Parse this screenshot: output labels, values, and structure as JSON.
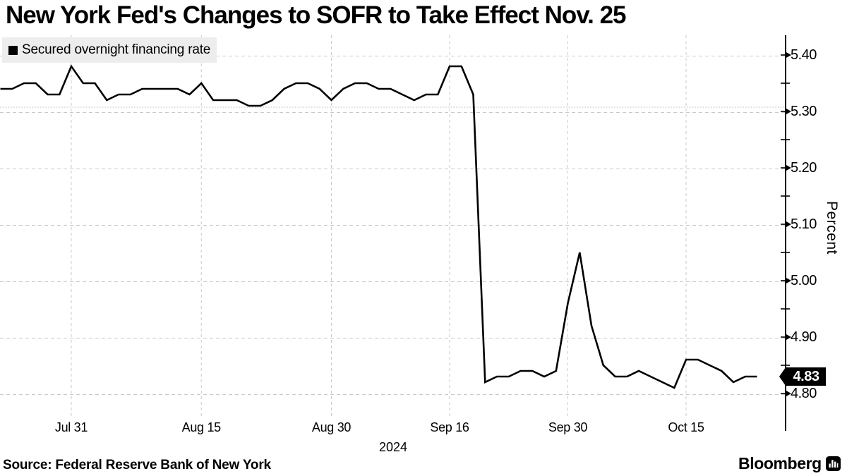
{
  "title": "New York Fed's Changes to SOFR to Take Effect Nov. 25",
  "legend": {
    "label": "Secured overnight financing rate",
    "swatch_color": "#000000"
  },
  "yaxis": {
    "title": "Percent"
  },
  "xaxis": {
    "year": "2024"
  },
  "footer": {
    "source": "Source: Federal Reserve Bank of New York",
    "brand": "Bloomberg"
  },
  "colors": {
    "line": "#000000",
    "grid": "#c9c9c9",
    "axis": "#000000",
    "legend_bg": "#ededed",
    "badge_bg": "#000000",
    "badge_text": "#ffffff"
  },
  "chart_data": {
    "type": "line",
    "title": "New York Fed's Changes to SOFR to Take Effect Nov. 25",
    "xlabel": "2024",
    "ylabel": "Percent",
    "ylim": [
      4.76,
      5.43
    ],
    "grid": true,
    "legend_position": "top-left",
    "legend": [
      "Secured overnight financing rate"
    ],
    "last_value_label": "4.83",
    "last_value": 4.83,
    "y_ticks": [
      {
        "v": 5.4,
        "label": "5.40"
      },
      {
        "v": 5.3,
        "label": "5.30"
      },
      {
        "v": 5.2,
        "label": "5.20"
      },
      {
        "v": 5.1,
        "label": "5.10"
      },
      {
        "v": 5.0,
        "label": "5.00"
      },
      {
        "v": 4.9,
        "label": "4.90"
      },
      {
        "v": 4.8,
        "label": "4.80"
      }
    ],
    "y_minor_ticks": [
      5.35,
      5.25,
      5.15,
      5.05,
      4.95,
      4.85
    ],
    "extra_dotted_gridline_value": 5.31,
    "x_ticks": [
      {
        "index": 6,
        "label": "Jul 31"
      },
      {
        "index": 17,
        "label": "Aug 15"
      },
      {
        "index": 28,
        "label": "Aug 30"
      },
      {
        "index": 38,
        "label": "Sep 16"
      },
      {
        "index": 48,
        "label": "Sep 30"
      },
      {
        "index": 58,
        "label": "Oct 15"
      }
    ],
    "series": [
      {
        "name": "Secured overnight financing rate",
        "dates": [
          "Jul 23",
          "Jul 24",
          "Jul 25",
          "Jul 26",
          "Jul 29",
          "Jul 30",
          "Jul 31",
          "Aug 1",
          "Aug 2",
          "Aug 5",
          "Aug 6",
          "Aug 7",
          "Aug 8",
          "Aug 9",
          "Aug 12",
          "Aug 13",
          "Aug 14",
          "Aug 15",
          "Aug 16",
          "Aug 19",
          "Aug 20",
          "Aug 21",
          "Aug 22",
          "Aug 23",
          "Aug 26",
          "Aug 27",
          "Aug 28",
          "Aug 29",
          "Aug 30",
          "Sep 3",
          "Sep 4",
          "Sep 5",
          "Sep 6",
          "Sep 9",
          "Sep 10",
          "Sep 11",
          "Sep 12",
          "Sep 13",
          "Sep 16",
          "Sep 17",
          "Sep 18",
          "Sep 19",
          "Sep 20",
          "Sep 23",
          "Sep 24",
          "Sep 25",
          "Sep 26",
          "Sep 27",
          "Sep 30",
          "Oct 1",
          "Oct 2",
          "Oct 3",
          "Oct 4",
          "Oct 7",
          "Oct 8",
          "Oct 9",
          "Oct 10",
          "Oct 11",
          "Oct 15",
          "Oct 16",
          "Oct 17",
          "Oct 18",
          "Oct 21",
          "Oct 22",
          "Oct 23"
        ],
        "values": [
          5.34,
          5.34,
          5.35,
          5.35,
          5.33,
          5.33,
          5.38,
          5.35,
          5.35,
          5.32,
          5.33,
          5.33,
          5.34,
          5.34,
          5.34,
          5.34,
          5.33,
          5.35,
          5.32,
          5.32,
          5.32,
          5.31,
          5.31,
          5.32,
          5.34,
          5.35,
          5.35,
          5.34,
          5.32,
          5.34,
          5.35,
          5.35,
          5.34,
          5.34,
          5.33,
          5.32,
          5.33,
          5.33,
          5.38,
          5.38,
          5.33,
          4.82,
          4.83,
          4.83,
          4.84,
          4.84,
          4.83,
          4.84,
          4.96,
          5.05,
          4.92,
          4.85,
          4.83,
          4.83,
          4.84,
          4.83,
          4.82,
          4.81,
          4.86,
          4.86,
          4.85,
          4.84,
          4.82,
          4.83,
          4.83
        ]
      }
    ]
  }
}
